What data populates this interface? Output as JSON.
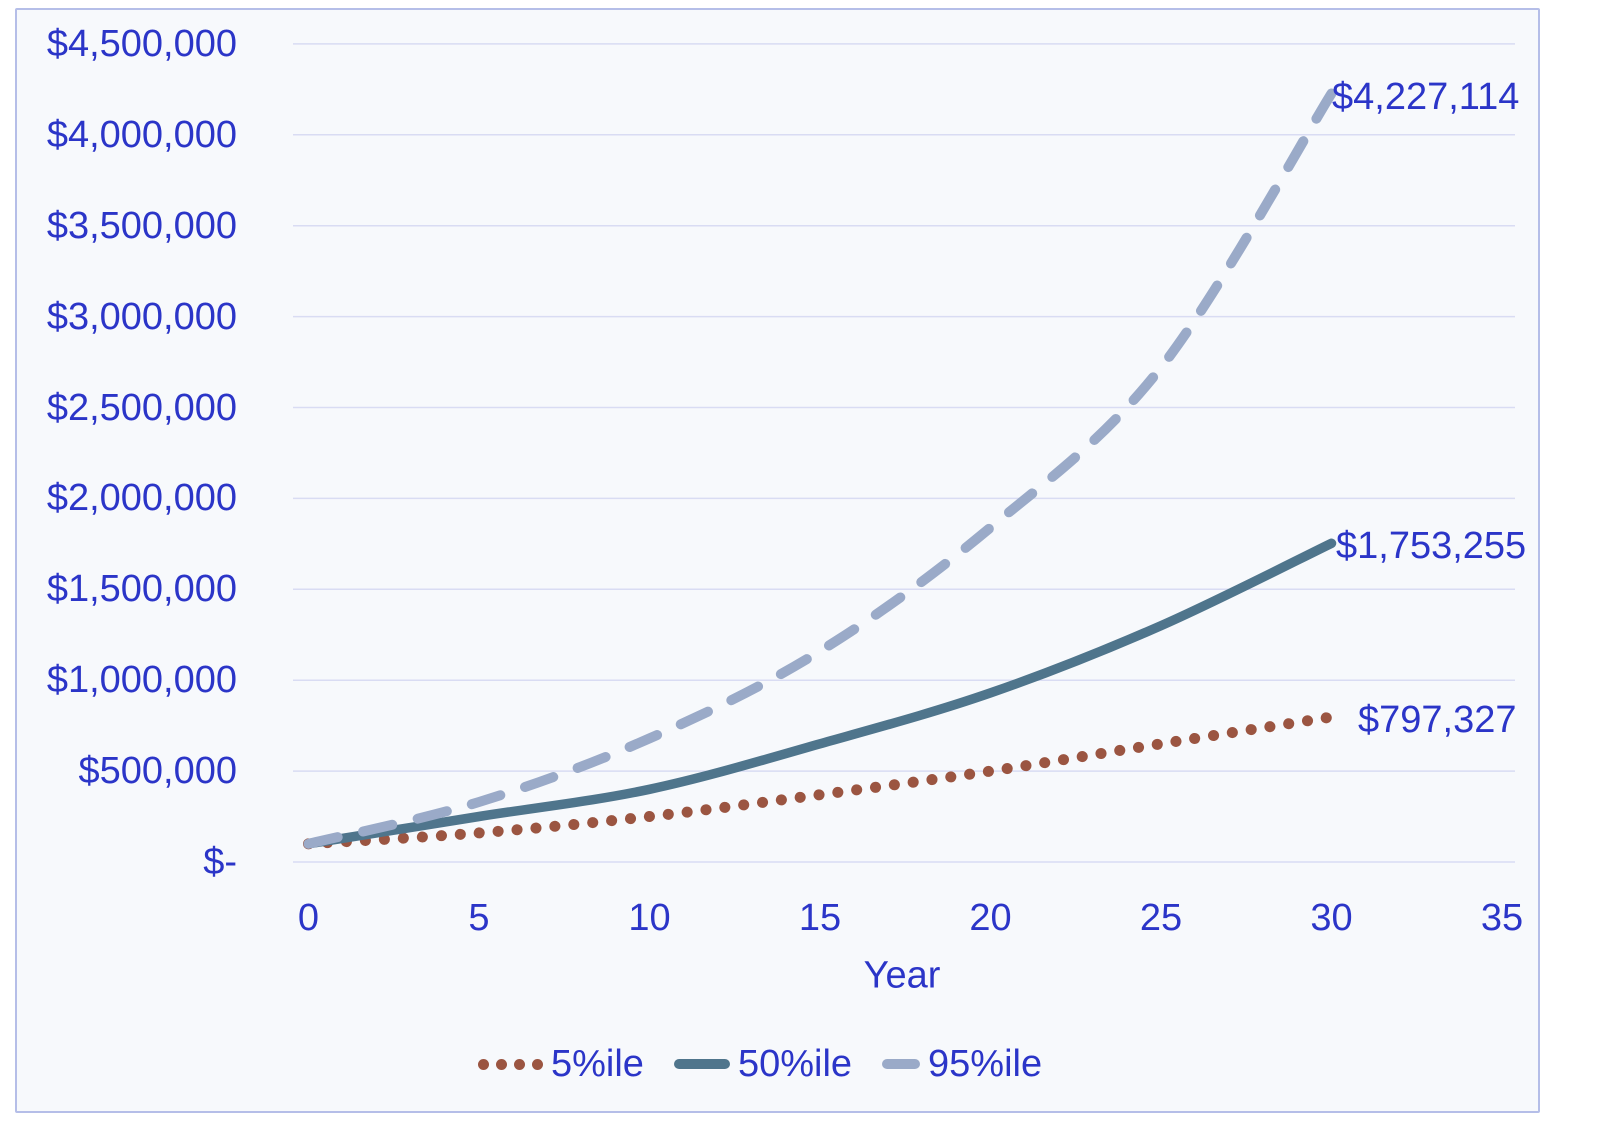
{
  "chart_data": {
    "type": "line",
    "title": "",
    "xlabel": "Year",
    "ylabel": "",
    "x": [
      0,
      5,
      10,
      15,
      20,
      25,
      30
    ],
    "series": [
      {
        "name": "5%ile",
        "line_style": "dotted",
        "color": "#9B5541",
        "values": [
          100000,
          160000,
          250000,
          370000,
          500000,
          650000,
          797327
        ],
        "final_value": 797327,
        "end_label": "$797,327"
      },
      {
        "name": "50%ile",
        "line_style": "solid",
        "color": "#4F758C",
        "values": [
          100000,
          250000,
          400000,
          650000,
          930000,
          1300000,
          1753255
        ],
        "final_value": 1753255,
        "end_label": "$1,753,255"
      },
      {
        "name": "95%ile",
        "line_style": "dashed",
        "color": "#9AAAC8",
        "values": [
          100000,
          330000,
          680000,
          1160000,
          1840000,
          2720000,
          4227114
        ],
        "final_value": 4227114,
        "end_label": "$4,227,114"
      }
    ],
    "x_ticks": [
      0,
      5,
      10,
      15,
      20,
      25,
      30,
      35
    ],
    "y_ticks": [
      "$-",
      "$500,000",
      "$1,000,000",
      "$1,500,000",
      "$2,000,000",
      "$2,500,000",
      "$3,000,000",
      "$3,500,000",
      "$4,000,000",
      "$4,500,000"
    ],
    "xlim": [
      0,
      35
    ],
    "ylim": [
      0,
      4500000
    ],
    "grid": true,
    "legend_position": "bottom",
    "colors": {
      "axis_text": "#2B35C8",
      "gridline": "#D9DCF3",
      "frame_border": "#B5BEE8",
      "plot_bg": "#F7F9FC"
    }
  }
}
